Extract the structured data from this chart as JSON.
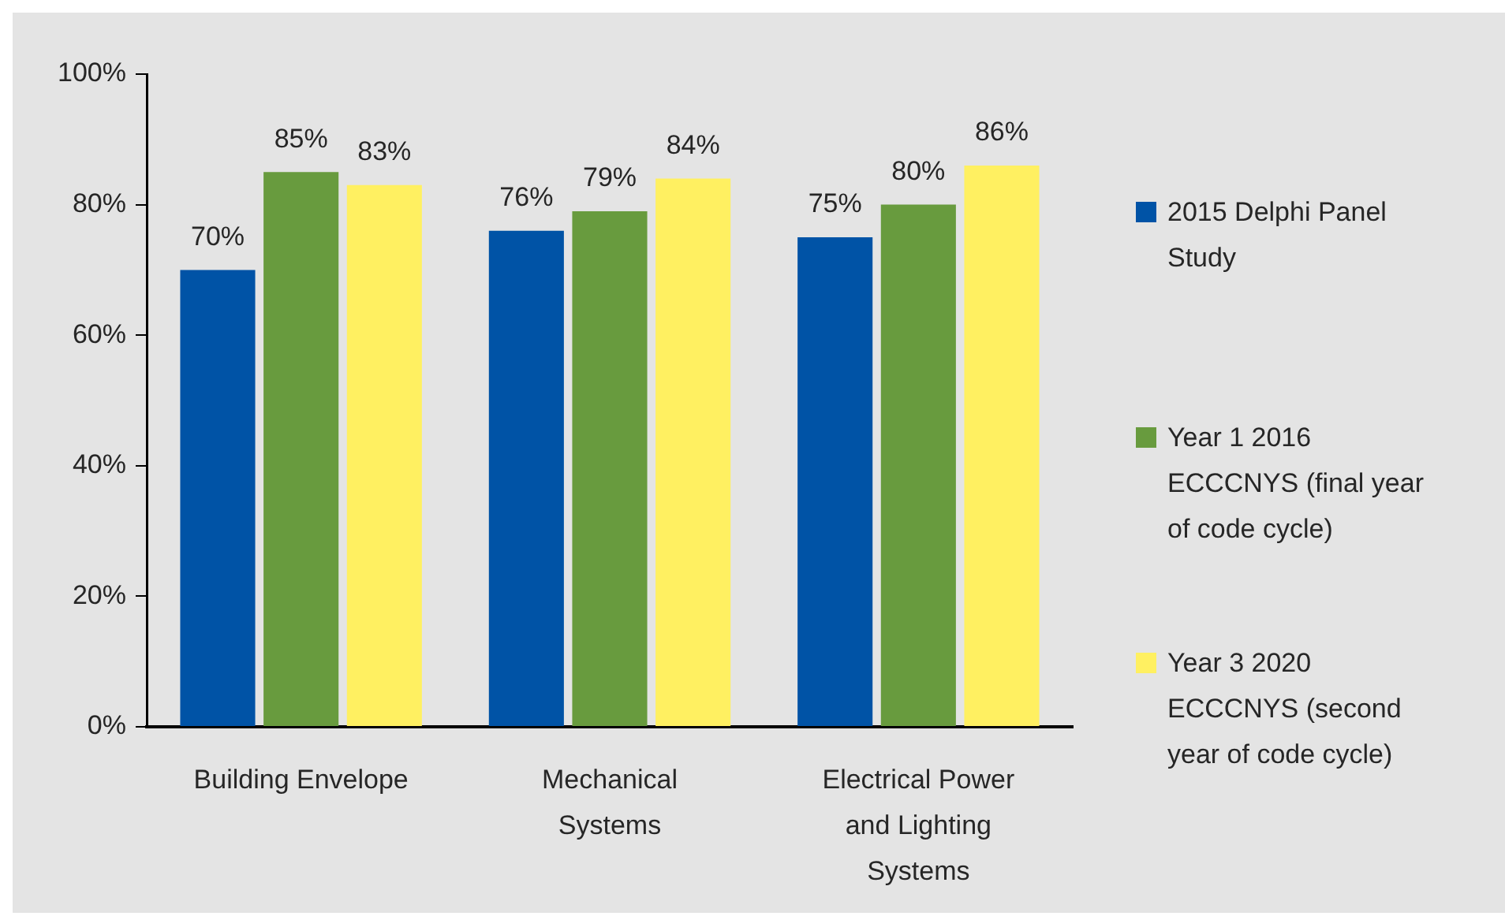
{
  "chart_data": {
    "type": "bar",
    "categories": [
      "Building Envelope",
      "Mechanical Systems",
      "Electrical Power and Lighting Systems"
    ],
    "series": [
      {
        "name": "2015 Delphi Panel Study",
        "color": "#0053a6",
        "values": [
          70,
          76,
          75
        ],
        "value_labels": [
          "70%",
          "76%",
          "75%"
        ]
      },
      {
        "name": "Year 1 2016 ECCCNYS (final year of code cycle)",
        "color": "#689b3e",
        "values": [
          85,
          79,
          80
        ],
        "value_labels": [
          "85%",
          "79%",
          "80%"
        ]
      },
      {
        "name": "Year 3 2020 ECCCNYS (second year of code cycle)",
        "color": "#fff061",
        "values": [
          83,
          84,
          86
        ],
        "value_labels": [
          "83%",
          "84%",
          "86%"
        ]
      }
    ],
    "ylim": [
      0,
      100
    ],
    "yticks": [
      {
        "value": 0,
        "label": "0%"
      },
      {
        "value": 20,
        "label": "20%"
      },
      {
        "value": 40,
        "label": "40%"
      },
      {
        "value": 60,
        "label": "60%"
      },
      {
        "value": 80,
        "label": "80%"
      },
      {
        "value": 100,
        "label": "100%"
      }
    ],
    "legend": "right"
  }
}
